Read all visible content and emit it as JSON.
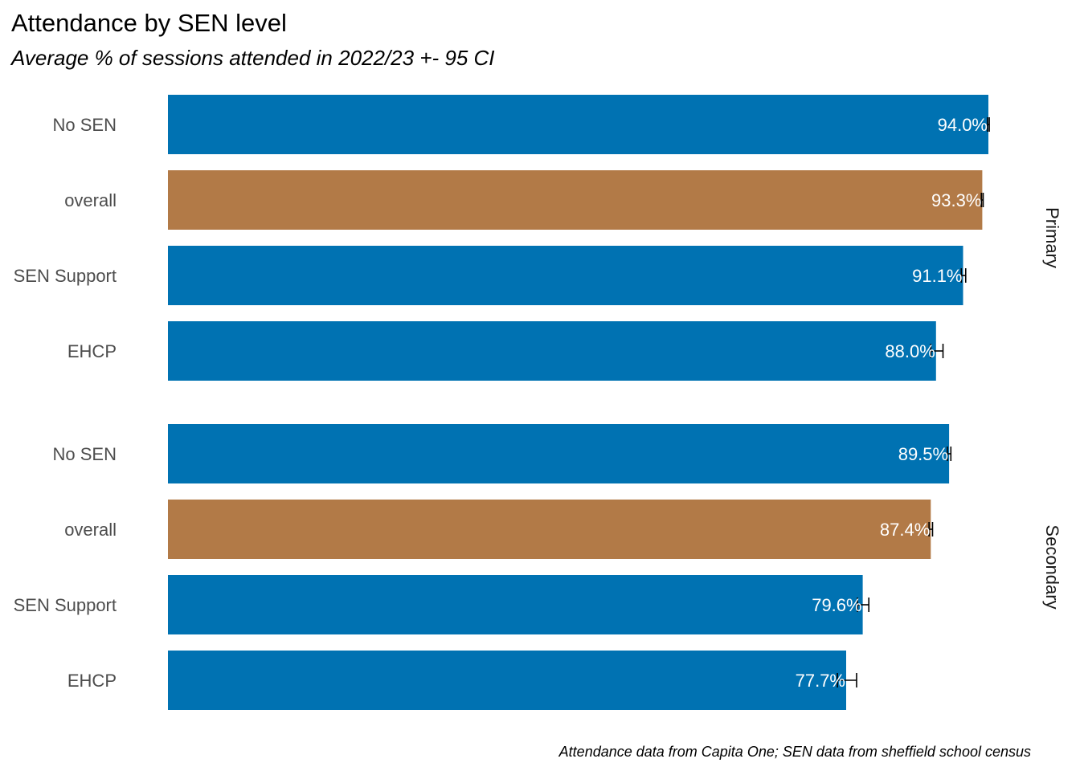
{
  "chart_data": {
    "type": "bar",
    "orientation": "horizontal",
    "title": "Attendance by SEN level",
    "subtitle": "Average % of sessions attended in 2022/23 +- 95 CI",
    "caption": "Attendance data from Capita One; SEN data from sheffield school census",
    "xlim": [
      0,
      100
    ],
    "grid": false,
    "legend": "none",
    "colors": {
      "sen_group": "#0072B2",
      "overall": "#B27A47",
      "errorbar": "#000000"
    },
    "facets": [
      {
        "name": "Primary",
        "rows": [
          {
            "category": "No SEN",
            "value": 94.0,
            "label": "94.0%",
            "ci_low": 93.9,
            "ci_high": 94.1,
            "group": "sen_group"
          },
          {
            "category": "overall",
            "value": 93.3,
            "label": "93.3%",
            "ci_low": 93.2,
            "ci_high": 93.4,
            "group": "overall"
          },
          {
            "category": "SEN Support",
            "value": 91.1,
            "label": "91.1%",
            "ci_low": 90.9,
            "ci_high": 91.4,
            "group": "sen_group"
          },
          {
            "category": "EHCP",
            "value": 88.0,
            "label": "88.0%",
            "ci_low": 87.4,
            "ci_high": 88.8,
            "group": "sen_group"
          }
        ]
      },
      {
        "name": "Secondary",
        "rows": [
          {
            "category": "No SEN",
            "value": 89.5,
            "label": "89.5%",
            "ci_low": 89.3,
            "ci_high": 89.7,
            "group": "sen_group"
          },
          {
            "category": "overall",
            "value": 87.4,
            "label": "87.4%",
            "ci_low": 87.2,
            "ci_high": 87.6,
            "group": "overall"
          },
          {
            "category": "SEN Support",
            "value": 79.6,
            "label": "79.6%",
            "ci_low": 79.0,
            "ci_high": 80.3,
            "group": "sen_group"
          },
          {
            "category": "EHCP",
            "value": 77.7,
            "label": "77.7%",
            "ci_low": 76.7,
            "ci_high": 78.9,
            "group": "sen_group"
          }
        ]
      }
    ]
  }
}
